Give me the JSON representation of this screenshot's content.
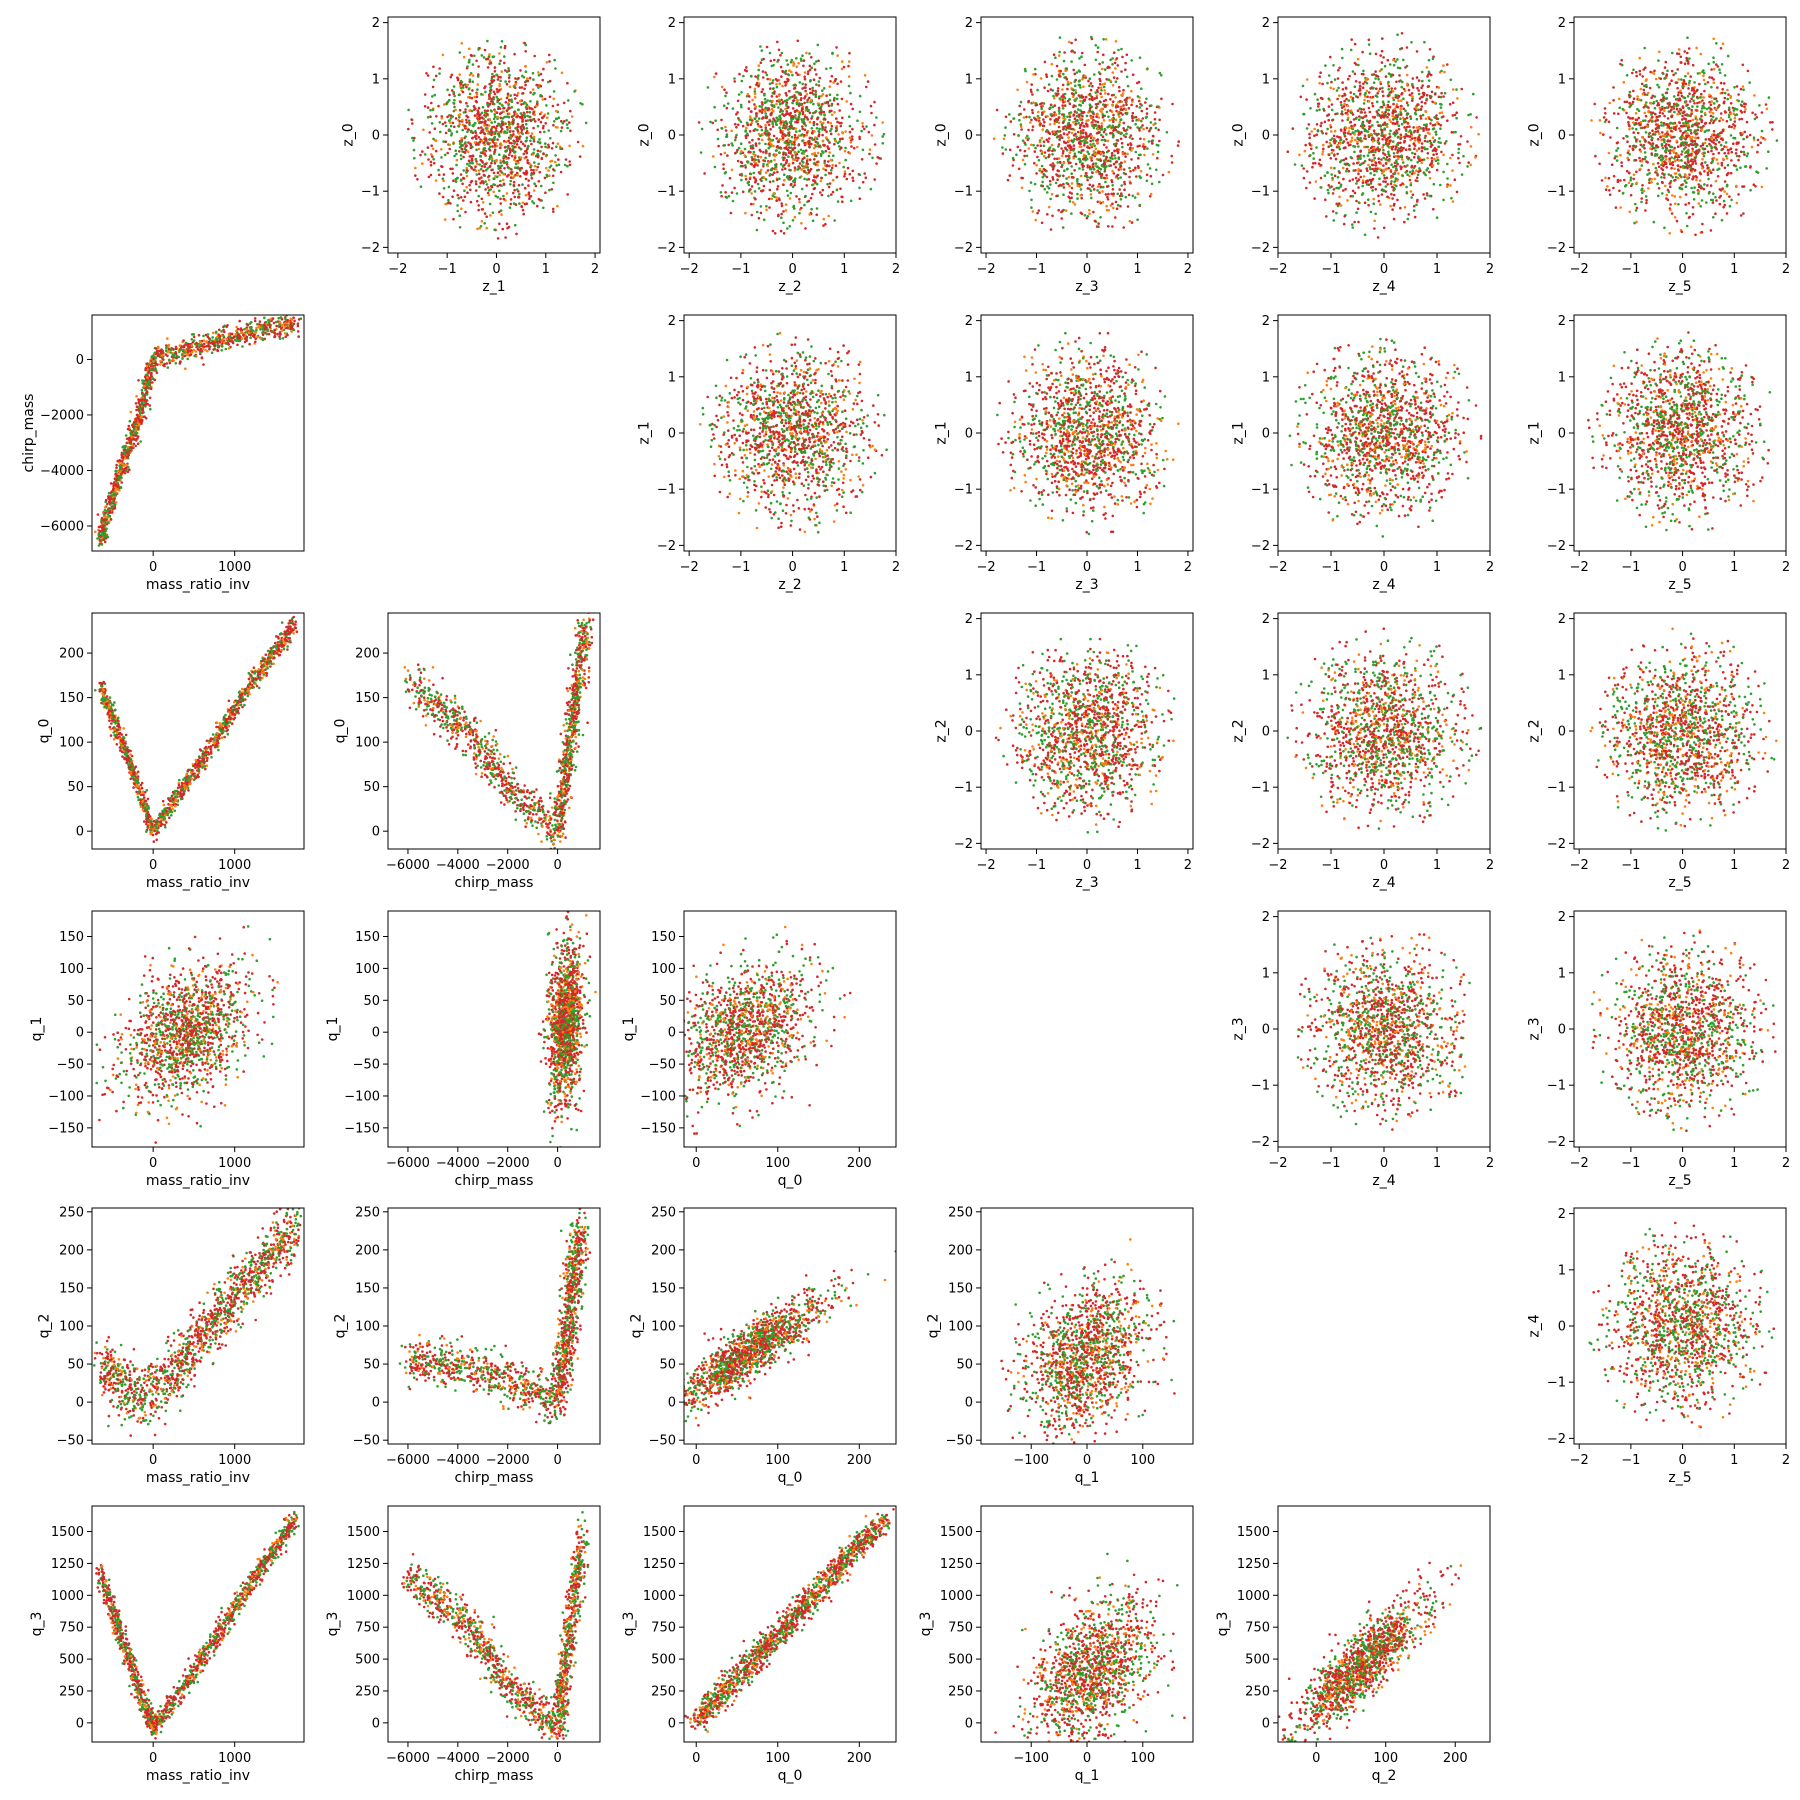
{
  "figure": {
    "point_colors": [
      "#d62728",
      "#2ca02c",
      "#ff7f0e"
    ],
    "point_mix": [
      0.5,
      0.33,
      0.17
    ]
  },
  "chart_data": [
    {
      "type": "scatter",
      "row": 0,
      "col": 1,
      "xlabel": "z_1",
      "ylabel": "z_0",
      "xlim": [
        -2.2,
        2.1
      ],
      "ylim": [
        -2.1,
        2.1
      ],
      "xticks": [
        -2,
        -1,
        0,
        1,
        2
      ],
      "yticks": [
        -2,
        -1,
        0,
        1,
        2
      ],
      "pattern": {
        "kind": "blob"
      }
    },
    {
      "type": "scatter",
      "row": 0,
      "col": 2,
      "xlabel": "z_2",
      "ylabel": "z_0",
      "xlim": [
        -2.1,
        2.0
      ],
      "ylim": [
        -2.1,
        2.1
      ],
      "xticks": [
        -2,
        -1,
        0,
        1,
        2
      ],
      "yticks": [
        -2,
        -1,
        0,
        1,
        2
      ],
      "pattern": {
        "kind": "blob"
      }
    },
    {
      "type": "scatter",
      "row": 0,
      "col": 3,
      "xlabel": "z_3",
      "ylabel": "z_0",
      "xlim": [
        -2.1,
        2.1
      ],
      "ylim": [
        -2.1,
        2.1
      ],
      "xticks": [
        -2,
        -1,
        0,
        1,
        2
      ],
      "yticks": [
        -2,
        -1,
        0,
        1,
        2
      ],
      "pattern": {
        "kind": "blob"
      }
    },
    {
      "type": "scatter",
      "row": 0,
      "col": 4,
      "xlabel": "z_4",
      "ylabel": "z_0",
      "xlim": [
        -2.0,
        2.0
      ],
      "ylim": [
        -2.1,
        2.1
      ],
      "xticks": [
        -2,
        -1,
        0,
        1,
        2
      ],
      "yticks": [
        -2,
        -1,
        0,
        1,
        2
      ],
      "pattern": {
        "kind": "blob"
      }
    },
    {
      "type": "scatter",
      "row": 0,
      "col": 5,
      "xlabel": "z_5",
      "ylabel": "z_0",
      "xlim": [
        -2.1,
        2.0
      ],
      "ylim": [
        -2.1,
        2.1
      ],
      "xticks": [
        -2,
        -1,
        0,
        1,
        2
      ],
      "yticks": [
        -2,
        -1,
        0,
        1,
        2
      ],
      "pattern": {
        "kind": "blob"
      }
    },
    {
      "type": "scatter",
      "row": 1,
      "col": 0,
      "xlabel": "mass_ratio_inv",
      "ylabel": "chirp_mass",
      "xlim": [
        -750,
        1850
      ],
      "ylim": [
        -6900,
        1600
      ],
      "xticks": [
        0,
        1000
      ],
      "yticks": [
        -6000,
        -4000,
        -2000,
        0
      ],
      "pattern": {
        "kind": "polyline",
        "pts": [
          [
            -650,
            -6500
          ],
          [
            -450,
            -4500
          ],
          [
            -200,
            -2300
          ],
          [
            0,
            0
          ],
          [
            600,
            500
          ],
          [
            1300,
            1050
          ],
          [
            1750,
            1300
          ]
        ],
        "noise": [
          30,
          200
        ]
      }
    },
    {
      "type": "scatter",
      "row": 1,
      "col": 2,
      "xlabel": "z_2",
      "ylabel": "z_1",
      "xlim": [
        -2.1,
        2.0
      ],
      "ylim": [
        -2.1,
        2.1
      ],
      "xticks": [
        -2,
        -1,
        0,
        1,
        2
      ],
      "yticks": [
        -2,
        -1,
        0,
        1,
        2
      ],
      "pattern": {
        "kind": "blob"
      }
    },
    {
      "type": "scatter",
      "row": 1,
      "col": 3,
      "xlabel": "z_3",
      "ylabel": "z_1",
      "xlim": [
        -2.1,
        2.1
      ],
      "ylim": [
        -2.1,
        2.1
      ],
      "xticks": [
        -2,
        -1,
        0,
        1,
        2
      ],
      "yticks": [
        -2,
        -1,
        0,
        1,
        2
      ],
      "pattern": {
        "kind": "blob"
      }
    },
    {
      "type": "scatter",
      "row": 1,
      "col": 4,
      "xlabel": "z_4",
      "ylabel": "z_1",
      "xlim": [
        -2.0,
        2.0
      ],
      "ylim": [
        -2.1,
        2.1
      ],
      "xticks": [
        -2,
        -1,
        0,
        1,
        2
      ],
      "yticks": [
        -2,
        -1,
        0,
        1,
        2
      ],
      "pattern": {
        "kind": "blob"
      }
    },
    {
      "type": "scatter",
      "row": 1,
      "col": 5,
      "xlabel": "z_5",
      "ylabel": "z_1",
      "xlim": [
        -2.1,
        2.0
      ],
      "ylim": [
        -2.1,
        2.1
      ],
      "xticks": [
        -2,
        -1,
        0,
        1,
        2
      ],
      "yticks": [
        -2,
        -1,
        0,
        1,
        2
      ],
      "pattern": {
        "kind": "blob"
      }
    },
    {
      "type": "scatter",
      "row": 2,
      "col": 0,
      "xlabel": "mass_ratio_inv",
      "ylabel": "q_0",
      "xlim": [
        -750,
        1850
      ],
      "ylim": [
        -20,
        245
      ],
      "xticks": [
        0,
        1000
      ],
      "yticks": [
        0,
        50,
        100,
        150,
        200
      ],
      "pattern": {
        "kind": "polyline",
        "pts": [
          [
            -650,
            165
          ],
          [
            -300,
            80
          ],
          [
            0,
            0
          ],
          [
            600,
            80
          ],
          [
            1200,
            165
          ],
          [
            1750,
            235
          ]
        ],
        "noise": [
          25,
          5
        ]
      }
    },
    {
      "type": "scatter",
      "row": 2,
      "col": 1,
      "xlabel": "chirp_mass",
      "ylabel": "q_0",
      "xlim": [
        -6800,
        1700
      ],
      "ylim": [
        -20,
        245
      ],
      "xticks": [
        -6000,
        -4000,
        -2000,
        0
      ],
      "yticks": [
        0,
        50,
        100,
        150,
        200
      ],
      "pattern": {
        "kind": "polyline",
        "pts": [
          [
            -6000,
            165
          ],
          [
            -3500,
            110
          ],
          [
            -2000,
            50
          ],
          [
            0,
            0
          ],
          [
            500,
            100
          ],
          [
            1100,
            230
          ]
        ],
        "noise": [
          150,
          12
        ]
      }
    },
    {
      "type": "scatter",
      "row": 2,
      "col": 3,
      "xlabel": "z_3",
      "ylabel": "z_2",
      "xlim": [
        -2.1,
        2.1
      ],
      "ylim": [
        -2.1,
        2.1
      ],
      "xticks": [
        -2,
        -1,
        0,
        1,
        2
      ],
      "yticks": [
        -2,
        -1,
        0,
        1,
        2
      ],
      "pattern": {
        "kind": "blob"
      }
    },
    {
      "type": "scatter",
      "row": 2,
      "col": 4,
      "xlabel": "z_4",
      "ylabel": "z_2",
      "xlim": [
        -2.0,
        2.0
      ],
      "ylim": [
        -2.1,
        2.1
      ],
      "xticks": [
        -2,
        -1,
        0,
        1,
        2
      ],
      "yticks": [
        -2,
        -1,
        0,
        1,
        2
      ],
      "pattern": {
        "kind": "blob"
      }
    },
    {
      "type": "scatter",
      "row": 2,
      "col": 5,
      "xlabel": "z_5",
      "ylabel": "z_2",
      "xlim": [
        -2.1,
        2.0
      ],
      "ylim": [
        -2.1,
        2.1
      ],
      "xticks": [
        -2,
        -1,
        0,
        1,
        2
      ],
      "yticks": [
        -2,
        -1,
        0,
        1,
        2
      ],
      "pattern": {
        "kind": "blob"
      }
    },
    {
      "type": "scatter",
      "row": 3,
      "col": 0,
      "xlabel": "mass_ratio_inv",
      "ylabel": "q_1",
      "xlim": [
        -750,
        1850
      ],
      "ylim": [
        -180,
        190
      ],
      "xticks": [
        0,
        1000
      ],
      "yticks": [
        -150,
        -100,
        -50,
        0,
        50,
        100,
        150
      ],
      "pattern": {
        "kind": "cloud",
        "cx": 400,
        "cy": 0,
        "sx": 380,
        "sy": 50,
        "slope": 0.06
      }
    },
    {
      "type": "scatter",
      "row": 3,
      "col": 1,
      "xlabel": "chirp_mass",
      "ylabel": "q_1",
      "xlim": [
        -6800,
        1700
      ],
      "ylim": [
        -180,
        190
      ],
      "xticks": [
        -6000,
        -4000,
        -2000,
        0
      ],
      "yticks": [
        -150,
        -100,
        -50,
        0,
        50,
        100,
        150
      ],
      "pattern": {
        "kind": "cloud",
        "cx": 300,
        "cy": 10,
        "sx": 350,
        "sy": 60,
        "slope": 0.04
      }
    },
    {
      "type": "scatter",
      "row": 3,
      "col": 2,
      "xlabel": "q_0",
      "ylabel": "q_1",
      "xlim": [
        -15,
        245
      ],
      "ylim": [
        -180,
        190
      ],
      "xticks": [
        0,
        100,
        200
      ],
      "yticks": [
        -150,
        -100,
        -50,
        0,
        50,
        100,
        150
      ],
      "pattern": {
        "kind": "cloud",
        "cx": 55,
        "cy": 0,
        "sx": 45,
        "sy": 50,
        "slope": 0.55
      }
    },
    {
      "type": "scatter",
      "row": 3,
      "col": 4,
      "xlabel": "z_4",
      "ylabel": "z_3",
      "xlim": [
        -2.0,
        2.0
      ],
      "ylim": [
        -2.1,
        2.1
      ],
      "xticks": [
        -2,
        -1,
        0,
        1,
        2
      ],
      "yticks": [
        -2,
        -1,
        0,
        1,
        2
      ],
      "pattern": {
        "kind": "blob"
      }
    },
    {
      "type": "scatter",
      "row": 3,
      "col": 5,
      "xlabel": "z_5",
      "ylabel": "z_3",
      "xlim": [
        -2.1,
        2.0
      ],
      "ylim": [
        -2.1,
        2.1
      ],
      "xticks": [
        -2,
        -1,
        0,
        1,
        2
      ],
      "yticks": [
        -2,
        -1,
        0,
        1,
        2
      ],
      "pattern": {
        "kind": "blob"
      }
    },
    {
      "type": "scatter",
      "row": 4,
      "col": 0,
      "xlabel": "mass_ratio_inv",
      "ylabel": "q_2",
      "xlim": [
        -750,
        1850
      ],
      "ylim": [
        -55,
        255
      ],
      "xticks": [
        0,
        1000
      ],
      "yticks": [
        -50,
        0,
        50,
        100,
        150,
        200,
        250
      ],
      "pattern": {
        "kind": "polyline",
        "pts": [
          [
            -650,
            50
          ],
          [
            -200,
            5
          ],
          [
            200,
            30
          ],
          [
            1000,
            140
          ],
          [
            1750,
            230
          ]
        ],
        "noise": [
          60,
          20
        ]
      }
    },
    {
      "type": "scatter",
      "row": 4,
      "col": 1,
      "xlabel": "chirp_mass",
      "ylabel": "q_2",
      "xlim": [
        -6800,
        1700
      ],
      "ylim": [
        -55,
        255
      ],
      "xticks": [
        -6000,
        -4000,
        -2000,
        0
      ],
      "yticks": [
        -50,
        0,
        50,
        100,
        150,
        200,
        250
      ],
      "pattern": {
        "kind": "polyline",
        "pts": [
          [
            -6000,
            55
          ],
          [
            -3000,
            40
          ],
          [
            -1000,
            15
          ],
          [
            0,
            0
          ],
          [
            400,
            90
          ],
          [
            900,
            230
          ]
        ],
        "noise": [
          200,
          15
        ]
      }
    },
    {
      "type": "scatter",
      "row": 4,
      "col": 2,
      "xlabel": "q_0",
      "ylabel": "q_2",
      "xlim": [
        -15,
        245
      ],
      "ylim": [
        -55,
        255
      ],
      "xticks": [
        0,
        100,
        200
      ],
      "yticks": [
        -50,
        0,
        50,
        100,
        150,
        200,
        250
      ],
      "pattern": {
        "kind": "cloud",
        "cx": 65,
        "cy": 65,
        "sx": 45,
        "sy": 18,
        "slope": 0.9
      }
    },
    {
      "type": "scatter",
      "row": 4,
      "col": 3,
      "xlabel": "q_1",
      "ylabel": "q_2",
      "xlim": [
        -190,
        190
      ],
      "ylim": [
        -55,
        255
      ],
      "xticks": [
        -100,
        0,
        100
      ],
      "yticks": [
        -50,
        0,
        50,
        100,
        150,
        200,
        250
      ],
      "pattern": {
        "kind": "cloud",
        "cx": 0,
        "cy": 60,
        "sx": 55,
        "sy": 45,
        "slope": 0.3
      }
    },
    {
      "type": "scatter",
      "row": 4,
      "col": 5,
      "xlabel": "z_5",
      "ylabel": "z_4",
      "xlim": [
        -2.1,
        2.0
      ],
      "ylim": [
        -2.1,
        2.1
      ],
      "xticks": [
        -2,
        -1,
        0,
        1,
        2
      ],
      "yticks": [
        -2,
        -1,
        0,
        1,
        2
      ],
      "pattern": {
        "kind": "blob"
      }
    },
    {
      "type": "scatter",
      "row": 5,
      "col": 0,
      "xlabel": "mass_ratio_inv",
      "ylabel": "q_3",
      "xlim": [
        -750,
        1850
      ],
      "ylim": [
        -150,
        1700
      ],
      "xticks": [
        0,
        1000
      ],
      "yticks": [
        0,
        250,
        500,
        750,
        1000,
        1250,
        1500
      ],
      "pattern": {
        "kind": "polyline",
        "pts": [
          [
            -650,
            1170
          ],
          [
            -300,
            500
          ],
          [
            0,
            -50
          ],
          [
            600,
            500
          ],
          [
            1200,
            1100
          ],
          [
            1750,
            1600
          ]
        ],
        "noise": [
          30,
          40
        ]
      }
    },
    {
      "type": "scatter",
      "row": 5,
      "col": 1,
      "xlabel": "chirp_mass",
      "ylabel": "q_3",
      "xlim": [
        -6800,
        1700
      ],
      "ylim": [
        -150,
        1700
      ],
      "xticks": [
        -6000,
        -4000,
        -2000,
        0
      ],
      "yticks": [
        0,
        250,
        500,
        750,
        1000,
        1250,
        1500
      ],
      "pattern": {
        "kind": "polyline",
        "pts": [
          [
            -6000,
            1150
          ],
          [
            -3500,
            750
          ],
          [
            -2000,
            300
          ],
          [
            0,
            -50
          ],
          [
            500,
            700
          ],
          [
            1000,
            1450
          ]
        ],
        "noise": [
          150,
          80
        ]
      }
    },
    {
      "type": "scatter",
      "row": 5,
      "col": 2,
      "xlabel": "q_0",
      "ylabel": "q_3",
      "xlim": [
        -15,
        245
      ],
      "ylim": [
        -150,
        1700
      ],
      "xticks": [
        0,
        100,
        200
      ],
      "yticks": [
        0,
        250,
        500,
        750,
        1000,
        1250,
        1500
      ],
      "pattern": {
        "kind": "polyline",
        "pts": [
          [
            0,
            0
          ],
          [
            230,
            1600
          ]
        ],
        "noise": [
          7,
          45
        ]
      }
    },
    {
      "type": "scatter",
      "row": 5,
      "col": 3,
      "xlabel": "q_1",
      "ylabel": "q_3",
      "xlim": [
        -190,
        190
      ],
      "ylim": [
        -150,
        1700
      ],
      "xticks": [
        -100,
        0,
        100
      ],
      "yticks": [
        0,
        250,
        500,
        750,
        1000,
        1250,
        1500
      ],
      "pattern": {
        "kind": "cloud",
        "cx": 10,
        "cy": 400,
        "sx": 55,
        "sy": 260,
        "slope": 2.5
      }
    },
    {
      "type": "scatter",
      "row": 5,
      "col": 4,
      "xlabel": "q_2",
      "ylabel": "q_3",
      "xlim": [
        -55,
        250
      ],
      "ylim": [
        -150,
        1700
      ],
      "xticks": [
        0,
        100,
        200
      ],
      "yticks": [
        0,
        250,
        500,
        750,
        1000,
        1250,
        1500
      ],
      "pattern": {
        "kind": "cloud",
        "cx": 65,
        "cy": 450,
        "sx": 45,
        "sy": 130,
        "slope": 6.0
      }
    }
  ]
}
